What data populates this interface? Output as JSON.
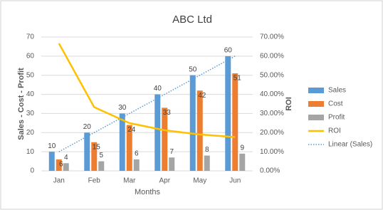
{
  "chart_data": {
    "type": "bar",
    "title": "ABC Ltd",
    "categories": [
      "Jan",
      "Feb",
      "Mar",
      "Apr",
      "May",
      "Jun"
    ],
    "x_label": "Months",
    "y_label": "Sales - Cost - Profit",
    "y2_label": "ROI",
    "ylim": [
      0,
      70
    ],
    "yticks": [
      0,
      10,
      20,
      30,
      40,
      50,
      60,
      70
    ],
    "y2lim": [
      0,
      70
    ],
    "y2ticks": [
      {
        "value": 0,
        "label": "0.00%"
      },
      {
        "value": 10,
        "label": "10.00%"
      },
      {
        "value": 20,
        "label": "20.00%"
      },
      {
        "value": 30,
        "label": "30.00%"
      },
      {
        "value": 40,
        "label": "40.00%"
      },
      {
        "value": 50,
        "label": "50.00%"
      },
      {
        "value": 60,
        "label": "60.00%"
      },
      {
        "value": 70,
        "label": "70.00%"
      }
    ],
    "grid": true,
    "legend": "right",
    "data_labels": true,
    "series": [
      {
        "name": "Sales",
        "color": "#5b9bd5",
        "kind": "bar",
        "values": [
          10,
          20,
          30,
          40,
          50,
          60
        ]
      },
      {
        "name": "Cost",
        "color": "#ed7d31",
        "kind": "bar",
        "values": [
          6,
          15,
          24,
          33,
          42,
          51
        ]
      },
      {
        "name": "Profit",
        "color": "#a5a5a5",
        "kind": "bar",
        "values": [
          4,
          5,
          6,
          7,
          8,
          9
        ]
      },
      {
        "name": "ROI",
        "color": "#ffc000",
        "kind": "line",
        "axis": "y2",
        "values": [
          66.67,
          33.33,
          25,
          21.21,
          19.05,
          17.65
        ]
      },
      {
        "name": "Linear (Sales)",
        "color": "#5b9bd5",
        "kind": "trendline",
        "values": [
          10,
          20,
          30,
          40,
          50,
          60
        ]
      }
    ]
  }
}
